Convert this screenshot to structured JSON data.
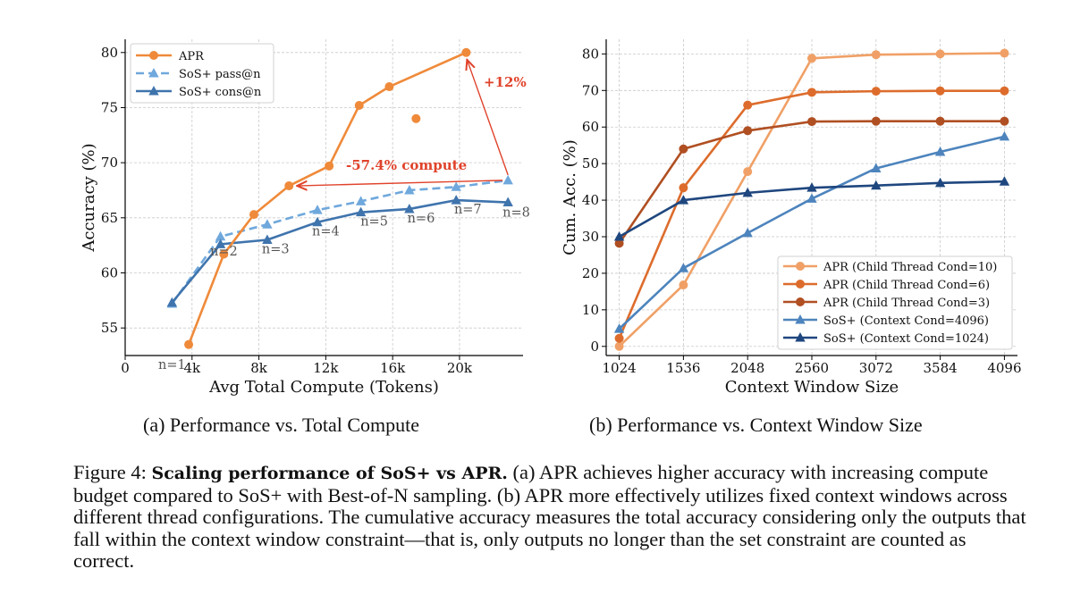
{
  "chart_data": [
    {
      "type": "line",
      "xlabel": "Avg Total Compute (Tokens)",
      "ylabel": "Accuracy (%)",
      "xlim": [
        0,
        23800
      ],
      "ylim": [
        52.5,
        81.2
      ],
      "xticks": [
        0,
        4000,
        8000,
        12000,
        16000,
        20000
      ],
      "xtick_labels": [
        "0",
        "4k",
        "8k",
        "12k",
        "16k",
        "20k"
      ],
      "yticks": [
        55,
        60,
        65,
        70,
        75,
        80
      ],
      "grid": true,
      "legend": "top-left",
      "series": [
        {
          "name": "APR",
          "color": "#ef8a3a",
          "marker": "circle",
          "linestyle": "solid",
          "points": [
            [
              3800,
              53.5
            ],
            [
              5900,
              61.7
            ],
            [
              7700,
              65.3
            ],
            [
              9800,
              67.9
            ],
            [
              12200,
              69.7
            ],
            [
              14000,
              75.2
            ],
            [
              15800,
              76.9
            ],
            [
              20400,
              80.0
            ]
          ]
        },
        {
          "name": "SoS+ pass@n",
          "color": "#6fa8dc",
          "marker": "triangle",
          "linestyle": "dashed",
          "points": [
            [
              2800,
              57.2
            ],
            [
              5700,
              63.3
            ],
            [
              8500,
              64.4
            ],
            [
              11500,
              65.7
            ],
            [
              14100,
              66.5
            ],
            [
              17000,
              67.5
            ],
            [
              19800,
              67.8
            ],
            [
              22900,
              68.4
            ]
          ]
        },
        {
          "name": "SoS+ cons@n",
          "color": "#3f74ad",
          "marker": "triangle",
          "linestyle": "solid",
          "points": [
            [
              2800,
              57.3
            ],
            [
              5700,
              62.6
            ],
            [
              8500,
              63.0
            ],
            [
              11500,
              64.6
            ],
            [
              14100,
              65.5
            ],
            [
              17000,
              65.8
            ],
            [
              19800,
              66.6
            ],
            [
              22900,
              66.4
            ]
          ]
        }
      ],
      "extra_point": {
        "x": 17400,
        "y": 74.0,
        "color": "#ef8a3a"
      },
      "point_labels": [
        {
          "text": "n=1",
          "x": 2800,
          "y": 51.3
        },
        {
          "text": "n=2",
          "x": 5900,
          "y": 61.6
        },
        {
          "text": "n=3",
          "x": 9000,
          "y": 61.8
        },
        {
          "text": "n=4",
          "x": 12000,
          "y": 63.4
        },
        {
          "text": "n=5",
          "x": 14900,
          "y": 64.3
        },
        {
          "text": "n=6",
          "x": 17700,
          "y": 64.6
        },
        {
          "text": "n=7",
          "x": 20500,
          "y": 65.4
        },
        {
          "text": "n=8",
          "x": 23400,
          "y": 65.1
        }
      ],
      "annotations": [
        {
          "text": "+12%",
          "color": "#e0432b"
        },
        {
          "text": "-57.4% compute",
          "color": "#e0432b"
        }
      ]
    },
    {
      "type": "line",
      "xlabel": "Context Window Size",
      "ylabel": "Cum. Acc. (%)",
      "categories": [
        1024,
        1536,
        2048,
        2560,
        3072,
        3584,
        4096
      ],
      "xtick_labels": [
        "1024",
        "1536",
        "2048",
        "2560",
        "3072",
        "3584",
        "4096"
      ],
      "xlim": [
        920,
        4200
      ],
      "ylim": [
        -2.5,
        84
      ],
      "yticks": [
        0,
        10,
        20,
        30,
        40,
        50,
        60,
        70,
        80
      ],
      "grid": true,
      "legend": "bottom-right",
      "series": [
        {
          "name": "APR (Child Thread Cond=10)",
          "color": "#f0a066",
          "marker": "circle",
          "values": [
            0.0,
            16.8,
            47.8,
            78.8,
            79.8,
            80.0,
            80.2
          ]
        },
        {
          "name": "APR (Child Thread Cond=6)",
          "color": "#dd6c2c",
          "marker": "circle",
          "values": [
            2.2,
            43.4,
            66.0,
            69.5,
            69.8,
            69.9,
            69.9
          ]
        },
        {
          "name": "APR (Child Thread Cond=3)",
          "color": "#b04f22",
          "marker": "circle",
          "values": [
            28.2,
            54.0,
            59.0,
            61.5,
            61.6,
            61.6,
            61.6
          ]
        },
        {
          "name": "SoS+ (Context Cond=4096)",
          "color": "#4d84bd",
          "marker": "triangle",
          "values": [
            4.8,
            21.4,
            31.0,
            40.4,
            48.7,
            53.2,
            57.4
          ]
        },
        {
          "name": "SoS+ (Context Cond=1024)",
          "color": "#1f477f",
          "marker": "triangle",
          "values": [
            30.0,
            40.0,
            42.0,
            43.4,
            44.0,
            44.7,
            45.1
          ]
        }
      ]
    }
  ],
  "subcaptions": {
    "a": "(a) Performance vs. Total Compute",
    "b": "(b) Performance vs. Context Window Size"
  },
  "caption": {
    "label": "Figure 4:",
    "bold": "Scaling performance of SoS+ vs APR.",
    "rest": "(a) APR achieves higher accuracy with increasing compute budget compared to SoS+ with Best-of-N sampling. (b) APR more effectively utilizes fixed context windows across different thread configurations. The cumulative accuracy measures the total accuracy considering only the outputs that fall within the context window constraint—that is, only outputs no longer than the set constraint are counted as correct."
  }
}
